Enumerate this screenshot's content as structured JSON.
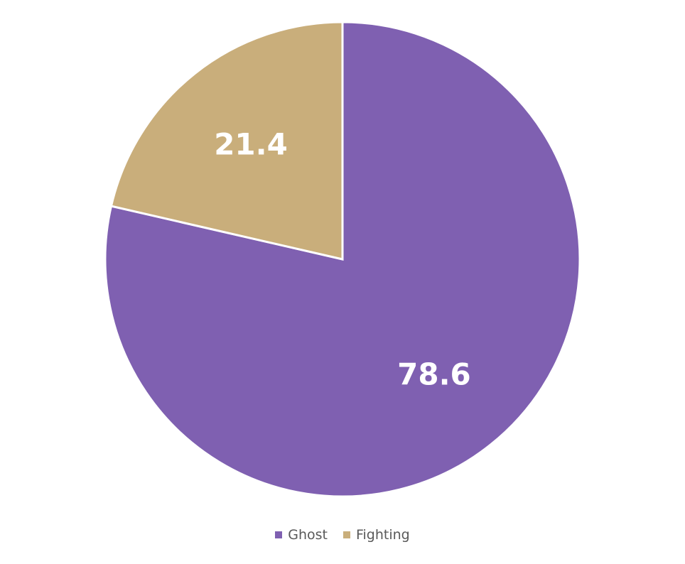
{
  "chart_data": {
    "type": "pie",
    "title": "",
    "categories": [
      "Ghost",
      "Fighting"
    ],
    "values": [
      78.6,
      21.4
    ],
    "data_labels": [
      "78.6",
      "21.4"
    ],
    "colors": [
      "#7f60b1",
      "#c9ae7b"
    ],
    "start_angle_deg": 0,
    "direction": "clockwise",
    "legend_position": "bottom"
  }
}
